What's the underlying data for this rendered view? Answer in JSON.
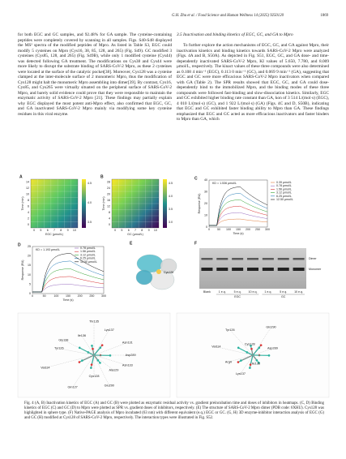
{
  "header": {
    "citation": "G.H. Zhu et al. / Food Science and Human Wellness 14 (2025) 9250120",
    "page_number": "1869"
  },
  "left_column": {
    "text": "for both EGC and GC samples, and 92.48% for GA sample. The cysteine-containing peptides were completely covered by scanning in all samples. Figs. S40-S48 displayed the MS² spectra of the modified peptides of Mpro. As listed in Table S3, EGC could modify 5 cysteines on Mpro (Cys16, 38, 85, 128, and 265) (Fig. S49). GC modified 3 cysteines (Cys85, 128, and 265) (Fig. S49B), while only 1 modified cysteine (Cys44) was detected following GA treatment. The modifications on Cys38 and Cys44 were more likely to disrupt the substrate binding of SARS-CoV-2 Mpro, as these 2 cysteines were located at the surface of the catalytic pocket[38]. Moreover, Cys128 was a cysteine clamped at the inter-molecule surface of 2 monomeric Mpro, thus the modification of Cys128 might halt the monomeric Mpro assembling into dimer[39]. By contrast, Cys16, Cys85, and Cys265 were virtually situated on the peripheral surface of SARS-CoV-2 Mpro, and barely solid evidence could prove that they were responsible to maintain the enzymatic activity of SARS-CoV-2 Mpro [21]. These findings may partially explain why EGC displayed the most potent anti-Mpro effect, also confirmed that EGC, GC, and GA inactivated SARS-CoV-2 Mpro mainly via modifying some key cysteine residues in this viral enzyme."
  },
  "section": {
    "heading": "3.5 Inactivation and binding kinetics of EGC, GC, and GA to Mpro",
    "text": "To further explore the action mechanisms of EGC, GC, and GA against Mpro, their inactivation kinetics and binding kinetics towards SARS-CoV-2 Mpro were analyzed (Figs. 4A and B, S50A). As depicted in Fig. S51, EGC, GC, and GA dose- and time-dependently inactivated SARS-CoV-2 Mpro, KI values of 5.650, 7.780, and 8.009 μmol/L, respectively. The kinact values of these three compounds were also determined as 0.108 4 min⁻¹ (EGC), 0.113 0 min⁻¹ (GC), and 0.069 9 min⁻¹ (GA), suggesting that EGC and GC were more efficacious SARS-CoV-2 Mpro inactivators when compared with GA (Table 2). The SPR results showed that EGC, GC, and GA could dose-dependently bind to the immobilized Mpro, and the binding modes of these three compounds were followed fast-binding and slow-dissociation kinetics. Similarly, EGC and GC exhibited higher binding rate constant than GA, kon of 3 514 L/(mol·s) (EGC), 4 010 L/(mol·s) (GC), and 1 922 L/(mol·s) (GA) (Figs. 4C and D, S50B), indicating that EGC and GC exhibited faster binding ability to Mpro than GA. These findings emphasized that EGC and GC acted as more efficacious inactivators and faster binders to Mpro than GA, which"
  },
  "figure": {
    "panels": {
      "A": {
        "label": "A",
        "y_label": "Time (min)",
        "x_label": "EGC (μmol/L)",
        "yticks": [
          "14",
          "12",
          "10",
          "8",
          "6",
          "4",
          "2",
          "0"
        ],
        "xticks": [
          "0",
          "5",
          "6",
          "7",
          "8",
          "9",
          "10"
        ],
        "colorbar_ticks": [
          "4.5",
          "4.0",
          "3.5"
        ]
      },
      "B": {
        "label": "B",
        "y_label": "Time (min)",
        "x_label": "GC (μmol/L)",
        "yticks": [
          "28",
          "24",
          "20",
          "16",
          "12",
          "8",
          "4",
          "0"
        ],
        "xticks": [
          "0",
          "5",
          "6",
          "7",
          "8",
          "9",
          "10"
        ],
        "colorbar_ticks": [
          "4.5",
          "4.0",
          "3.5",
          "3.0"
        ]
      },
      "C": {
        "label": "C",
        "annotation": "KD = 1.536 μmol/L",
        "y_label": "Response (RU)",
        "x_label": "Time (s)",
        "yticks": [
          "40",
          "30",
          "20",
          "10",
          "0"
        ],
        "xticks": [
          "0",
          "50",
          "100",
          "150",
          "200",
          "250",
          "300"
        ],
        "legend": [
          "0.39 μmol/L",
          "0.78 μmol/L",
          "1.56 μmol/L",
          "3.12 μmol/L",
          "6.25 μmol/L",
          "12.50 μmol/L"
        ]
      },
      "D": {
        "label": "D",
        "annotation": "KD = 1.193 μmol/L",
        "y_label": "Response (RU)",
        "x_label": "Time (s)",
        "yticks": [
          "25",
          "20",
          "15",
          "10",
          "5",
          "0"
        ],
        "xticks": [
          "0",
          "50",
          "100",
          "150",
          "200",
          "250",
          "300"
        ],
        "legend": [
          "0.78 μmol/L",
          "1.56 μmol/L",
          "3.12 μmol/L",
          "6.25 μmol/L",
          "12.50 μmol/L"
        ]
      },
      "E": {
        "label": "E",
        "annotation": "Cys128"
      },
      "F": {
        "label": "F",
        "bands": [
          "Dimer",
          "Monomer"
        ],
        "lanes": [
          "Blank",
          "1 e.q.",
          "5 e.q.",
          "10 e.q.",
          "1 e.q.",
          "5 e.q.",
          "10 e.q."
        ],
        "groups": [
          "EGC",
          "GC"
        ]
      },
      "G": {
        "label": "G",
        "residues": [
          "Thr135",
          "Lys137",
          "Ile136",
          "Gly138",
          "Tyr126",
          "Asn131",
          "Asp289",
          "Val114",
          "Asn133",
          "Ala129",
          "Cys128",
          "Gln127",
          "Glu290"
        ]
      },
      "H": {
        "label": "H",
        "residues": [
          "Tyr126",
          "Gln290",
          "Val114",
          "Cys128",
          "Asp289",
          "Arg4",
          "Ile136",
          "Lys137"
        ]
      }
    },
    "caption": "Fig. 4 (A, B) Inactivation kinetics of EGC (A) and GC (B) were plotted as enzymatic residual activity vs. gradient preincubation time and doses of inhibitors in heatmaps. (C, D) Binding kinetics of EGC (C) and GC (D) to Mpro were plotted as SPR vs. gradient doses of inhibitors, respectively. (E) The structure of SARS-CoV-2 Mpro dimer (PDB code: 6XHU). Cys128 was highlighted in sphere type. (F) Native-PAGE analysis of Mpro incubated (63 nm) with different equivalent (e.q.) EGC or GC. (G, H) 3D enzyme-inhibitor interaction analysis of EGC (G) and GC (H) modified at Cys128 of SARS-CoV-2 Mpro, respectively. The interaction types were illustrated in Fig. S52."
  }
}
